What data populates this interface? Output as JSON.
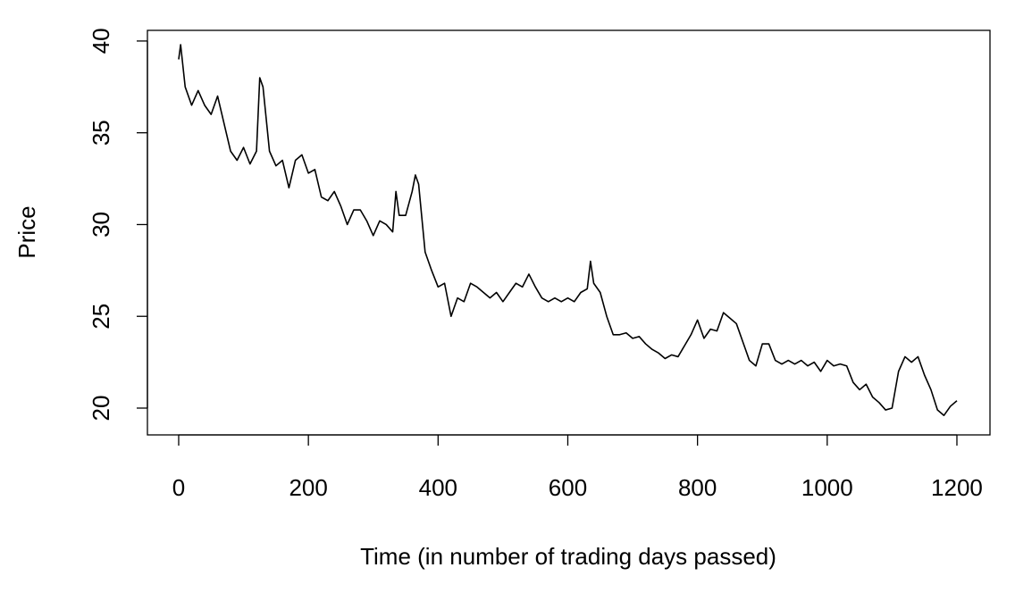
{
  "chart_data": {
    "type": "line",
    "xlabel": "Time (in number of trading days passed)",
    "ylabel": "Price",
    "x": [
      0,
      3,
      10,
      20,
      30,
      40,
      50,
      60,
      70,
      80,
      90,
      100,
      110,
      120,
      125,
      130,
      140,
      150,
      160,
      170,
      180,
      190,
      200,
      210,
      220,
      230,
      240,
      250,
      260,
      270,
      280,
      290,
      300,
      310,
      320,
      330,
      335,
      340,
      350,
      360,
      365,
      370,
      380,
      390,
      400,
      410,
      420,
      430,
      440,
      450,
      460,
      470,
      480,
      490,
      500,
      510,
      520,
      530,
      540,
      550,
      560,
      570,
      580,
      590,
      600,
      610,
      620,
      630,
      635,
      640,
      650,
      660,
      670,
      680,
      690,
      700,
      710,
      720,
      730,
      740,
      750,
      760,
      770,
      780,
      790,
      800,
      810,
      820,
      830,
      840,
      850,
      860,
      870,
      880,
      890,
      900,
      910,
      920,
      930,
      940,
      950,
      960,
      970,
      980,
      990,
      1000,
      1010,
      1020,
      1030,
      1040,
      1050,
      1060,
      1070,
      1080,
      1090,
      1100,
      1110,
      1120,
      1130,
      1140,
      1150,
      1160,
      1170,
      1180,
      1190,
      1200
    ],
    "series": [
      {
        "color": "#000000",
        "values": [
          39.0,
          39.8,
          37.5,
          36.5,
          37.3,
          36.5,
          36.0,
          37.0,
          35.5,
          34.0,
          33.5,
          34.2,
          33.3,
          34.0,
          38.0,
          37.5,
          34.0,
          33.2,
          33.5,
          32.0,
          33.5,
          33.8,
          32.8,
          33.0,
          31.5,
          31.3,
          31.8,
          31.0,
          30.0,
          30.8,
          30.8,
          30.2,
          29.4,
          30.2,
          30.0,
          29.6,
          31.8,
          30.5,
          30.5,
          31.8,
          32.7,
          32.2,
          28.5,
          27.5,
          26.6,
          26.8,
          25.0,
          26.0,
          25.8,
          26.8,
          26.6,
          26.3,
          26.0,
          26.3,
          25.8,
          26.3,
          26.8,
          26.6,
          27.3,
          26.6,
          26.0,
          25.8,
          26.0,
          25.8,
          26.0,
          25.8,
          26.3,
          26.5,
          28.0,
          26.8,
          26.3,
          25.0,
          24.0,
          24.0,
          24.1,
          23.8,
          23.9,
          23.5,
          23.2,
          23.0,
          22.7,
          22.9,
          22.8,
          23.4,
          24.0,
          24.8,
          23.8,
          24.3,
          24.2,
          25.2,
          24.9,
          24.6,
          23.6,
          22.6,
          22.3,
          23.5,
          23.5,
          22.6,
          22.4,
          22.6,
          22.4,
          22.6,
          22.3,
          22.5,
          22.0,
          22.6,
          22.3,
          22.4,
          22.3,
          21.4,
          21.0,
          21.3,
          20.6,
          20.3,
          19.9,
          20.0,
          22.0,
          22.8,
          22.5,
          22.8,
          21.8,
          21.0,
          19.9,
          19.6,
          20.1,
          20.4
        ]
      }
    ],
    "xlim": [
      -48.2,
      1251
    ],
    "ylim": [
      18.54,
      40.58
    ],
    "xticks": [
      0,
      200,
      400,
      600,
      800,
      1000,
      1200
    ],
    "yticks": [
      20,
      25,
      30,
      35,
      40
    ]
  }
}
